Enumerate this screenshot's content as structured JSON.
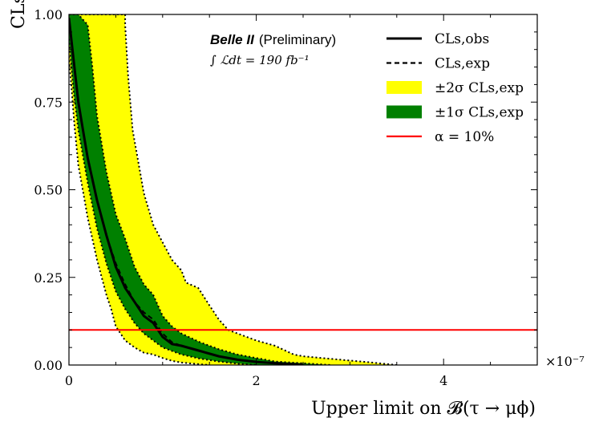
{
  "chart_data": {
    "type": "line",
    "title_bold": "Belle II",
    "title_rest": "(Preliminary)",
    "luminosity": "∫ ℒdt  =  190 fb⁻¹",
    "xlabel": "Upper limit on 𝓑(τ → μϕ)",
    "ylabel": "CLs",
    "x_multiplier": "×10⁻⁷",
    "xlim": [
      0,
      5
    ],
    "ylim": [
      0,
      1
    ],
    "x_ticks": [
      0,
      2,
      4
    ],
    "x_tick_labels": [
      "0",
      "2",
      "4"
    ],
    "y_ticks": [
      0,
      0.25,
      0.5,
      0.75,
      1.0
    ],
    "y_tick_labels": [
      "0.00",
      "0.25",
      "0.50",
      "0.75",
      "1.00"
    ],
    "grid": false,
    "legend_position": "top-right",
    "legend": [
      {
        "label": "CLs,obs",
        "style": "solid",
        "color": "#000000"
      },
      {
        "label": "CLs,exp",
        "style": "dashed",
        "color": "#000000"
      },
      {
        "label": "±2σ CLs,exp",
        "style": "fill",
        "color": "#ffff00"
      },
      {
        "label": "±1σ CLs,exp",
        "style": "fill",
        "color": "#008000"
      },
      {
        "label": "α = 10%",
        "style": "solid",
        "color": "#ff0000"
      }
    ],
    "alpha_level": 0.1,
    "series": [
      {
        "name": "CLs,obs",
        "x": [
          0,
          0.05,
          0.1,
          0.15,
          0.2,
          0.3,
          0.4,
          0.5,
          0.6,
          0.7,
          0.8,
          0.9,
          1.0,
          1.1,
          1.2,
          1.4,
          1.6,
          1.8,
          2.0,
          2.2,
          2.5
        ],
        "y": [
          0.99,
          0.87,
          0.75,
          0.67,
          0.59,
          0.47,
          0.37,
          0.28,
          0.22,
          0.18,
          0.14,
          0.12,
          0.08,
          0.06,
          0.055,
          0.04,
          0.025,
          0.015,
          0.009,
          0.005,
          0.001
        ]
      },
      {
        "name": "CLs,exp",
        "x": [
          0,
          0.05,
          0.1,
          0.15,
          0.2,
          0.3,
          0.4,
          0.5,
          0.6,
          0.7,
          0.8,
          0.9,
          1.0,
          1.1,
          1.2,
          1.4,
          1.6,
          1.8,
          2.0,
          2.2,
          2.5
        ],
        "y": [
          0.99,
          0.87,
          0.75,
          0.67,
          0.59,
          0.47,
          0.37,
          0.29,
          0.23,
          0.18,
          0.15,
          0.13,
          0.09,
          0.065,
          0.055,
          0.04,
          0.025,
          0.015,
          0.009,
          0.005,
          0.001
        ]
      }
    ],
    "band_2sigma": {
      "upper_x": [
        0,
        0.22,
        0.22,
        0.6,
        0.6,
        0.63,
        0.68,
        0.8,
        0.9,
        1.0,
        1.1,
        1.2,
        1.25,
        1.38,
        1.5,
        1.6,
        1.7,
        1.8,
        2.0,
        2.2,
        2.4,
        2.5,
        2.7,
        3.2,
        3.5
      ],
      "upper_y": [
        1.0,
        1.0,
        1.0,
        1.0,
        0.97,
        0.83,
        0.67,
        0.49,
        0.4,
        0.35,
        0.3,
        0.27,
        0.235,
        0.22,
        0.17,
        0.13,
        0.1,
        0.09,
        0.07,
        0.055,
        0.03,
        0.025,
        0.02,
        0.008,
        0.0
      ],
      "lower_x": [
        0,
        0.06,
        0.1,
        0.2,
        0.3,
        0.4,
        0.45,
        0.5,
        0.6,
        0.7,
        0.8,
        0.9,
        1.0,
        1.1,
        1.2,
        1.4,
        1.5
      ],
      "lower_y": [
        0.88,
        0.68,
        0.57,
        0.42,
        0.3,
        0.2,
        0.16,
        0.11,
        0.07,
        0.05,
        0.035,
        0.03,
        0.02,
        0.012,
        0.007,
        0.002,
        0.0
      ]
    },
    "band_1sigma": {
      "upper_x": [
        0,
        0.1,
        0.2,
        0.25,
        0.3,
        0.4,
        0.5,
        0.6,
        0.7,
        0.8,
        0.9,
        1.0,
        1.1,
        1.2,
        1.4,
        1.6,
        1.8,
        2.0,
        2.2,
        2.5,
        2.8
      ],
      "upper_y": [
        1.0,
        1.0,
        0.97,
        0.85,
        0.71,
        0.55,
        0.43,
        0.36,
        0.28,
        0.23,
        0.2,
        0.14,
        0.11,
        0.09,
        0.065,
        0.045,
        0.03,
        0.02,
        0.01,
        0.005,
        0.0
      ],
      "lower_x": [
        0,
        0.05,
        0.1,
        0.2,
        0.3,
        0.4,
        0.5,
        0.6,
        0.7,
        0.8,
        0.9,
        1.0,
        1.1,
        1.2,
        1.4,
        1.6,
        1.8,
        2.0
      ],
      "lower_y": [
        0.93,
        0.78,
        0.67,
        0.52,
        0.39,
        0.29,
        0.21,
        0.16,
        0.12,
        0.09,
        0.07,
        0.05,
        0.04,
        0.03,
        0.018,
        0.01,
        0.004,
        0.0
      ]
    }
  }
}
